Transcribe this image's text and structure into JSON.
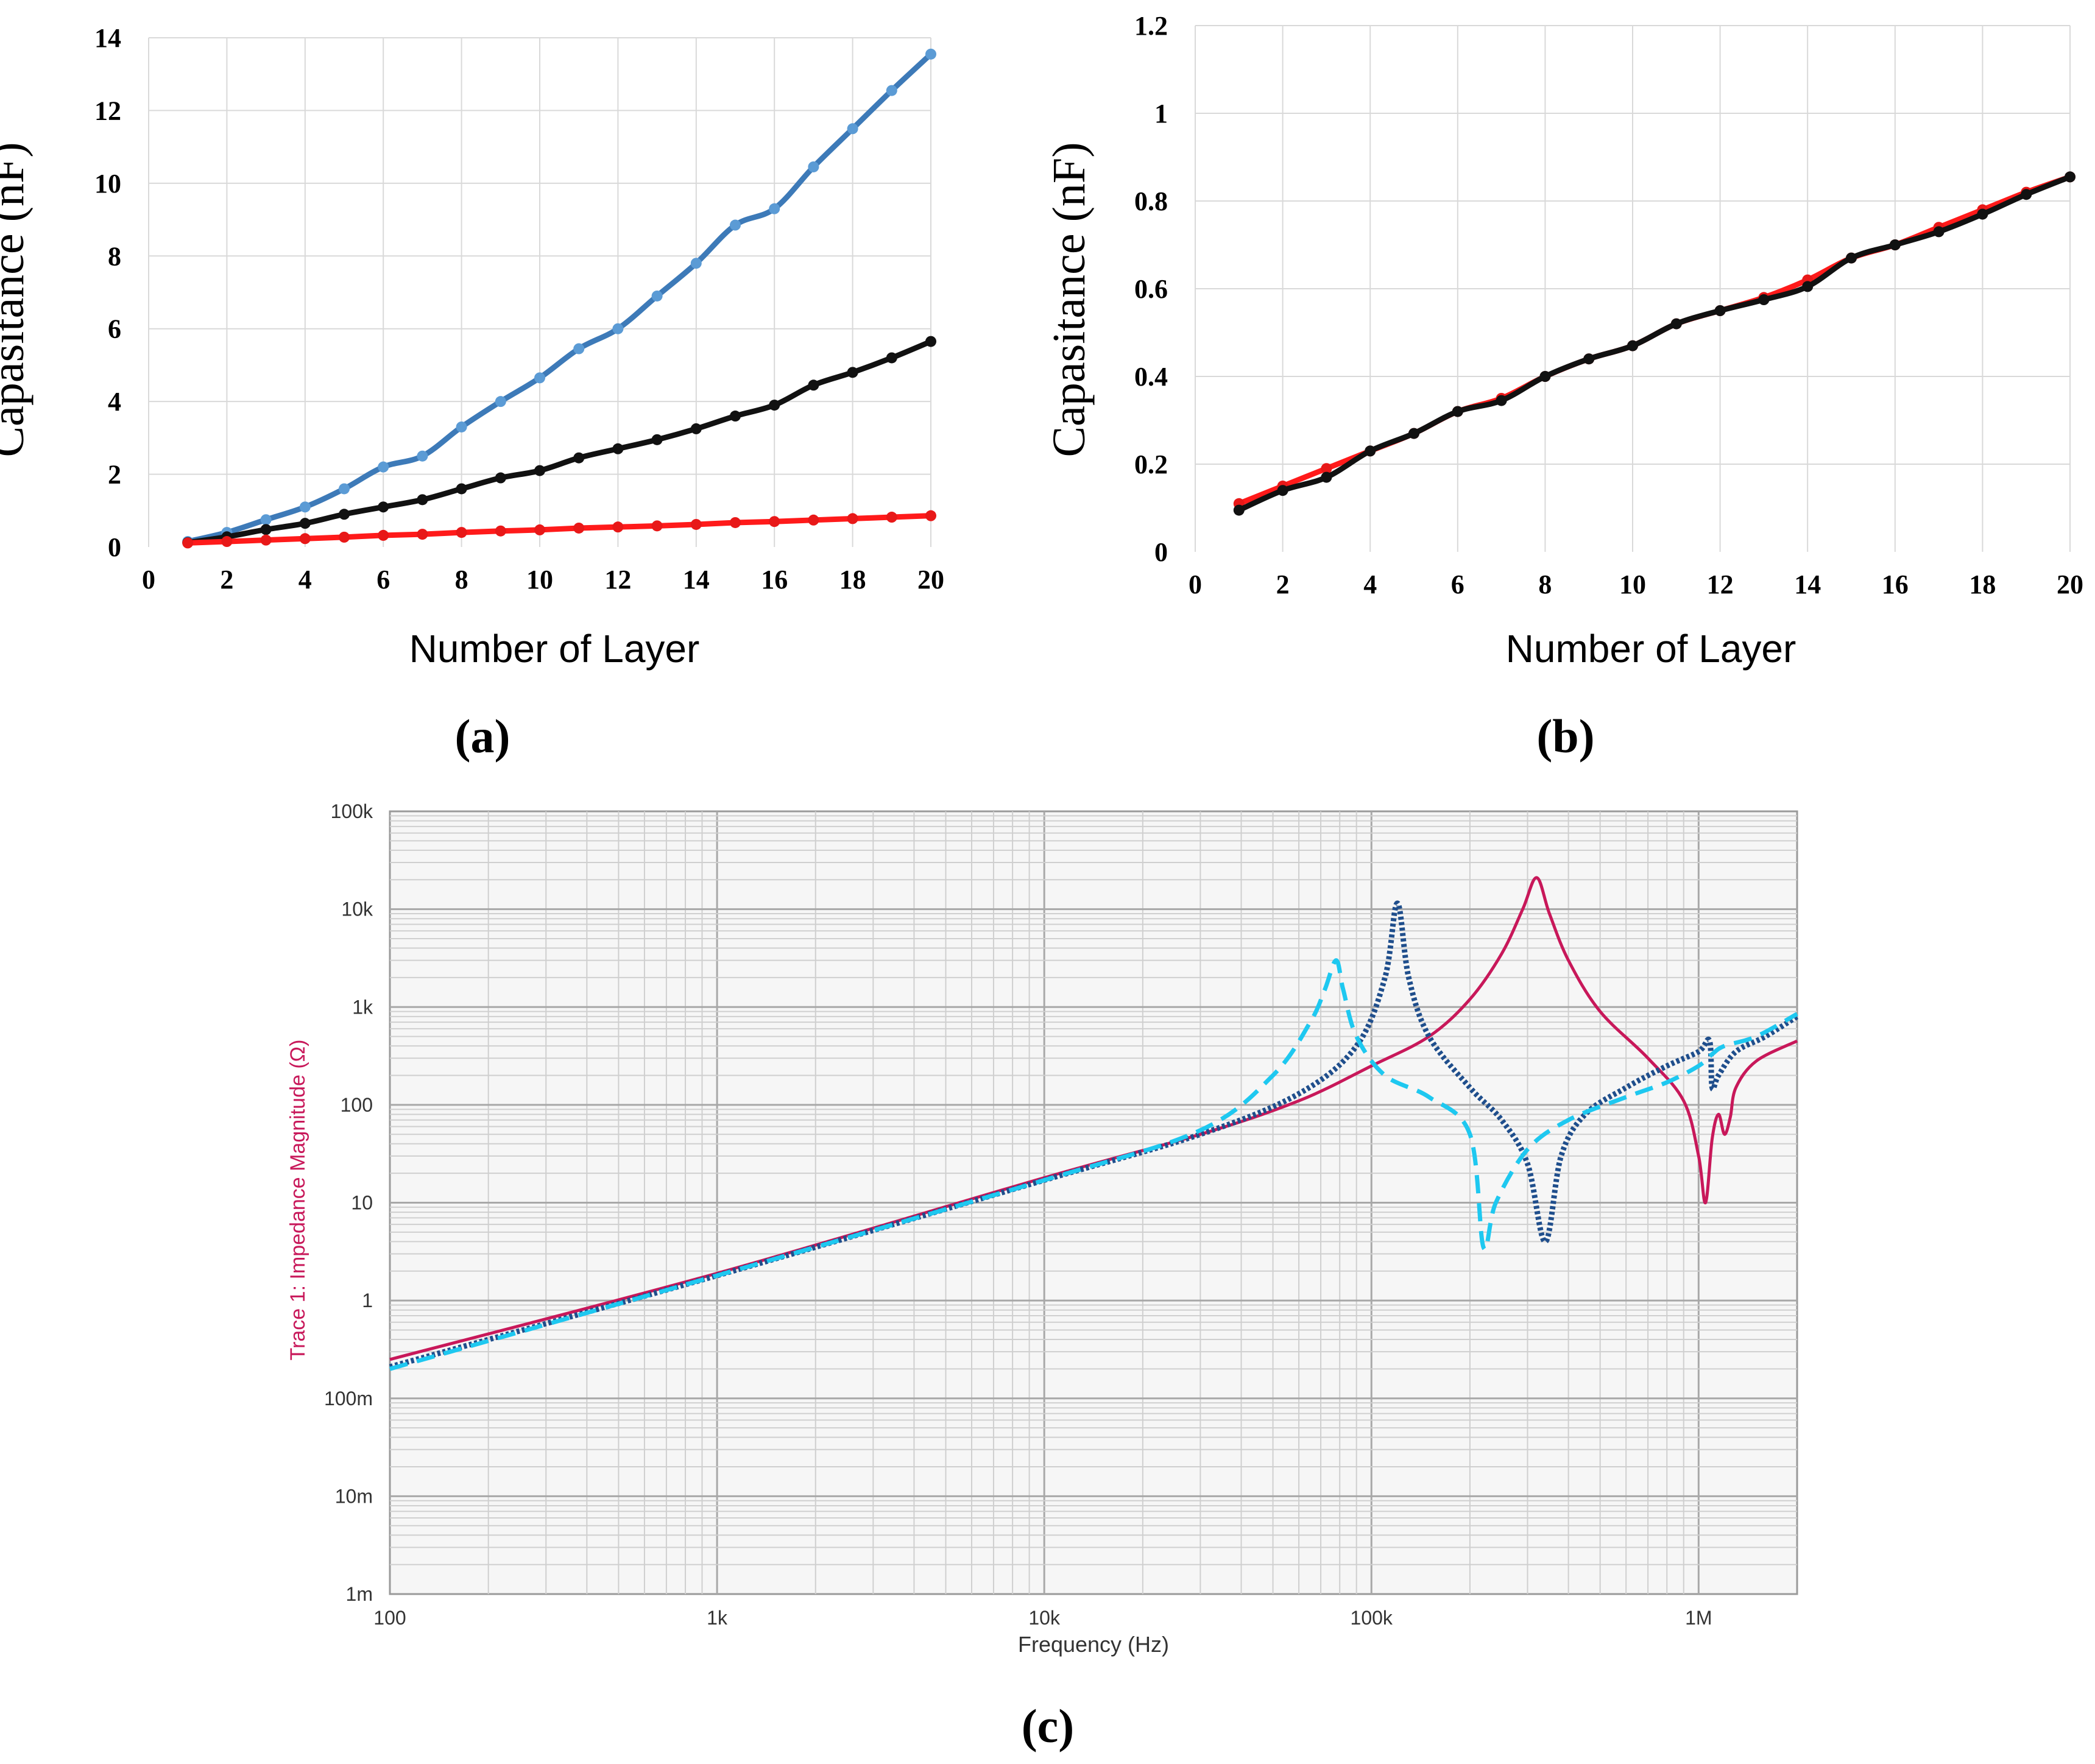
{
  "chart_data": [
    {
      "type": "line",
      "panel_label": "(a)",
      "xlabel": "Number of Layer",
      "ylabel": "Capasitance (nF)",
      "xlim": [
        0,
        20
      ],
      "ylim": [
        0,
        14
      ],
      "xticks": [
        "0",
        "2",
        "4",
        "6",
        "8",
        "10",
        "12",
        "14",
        "16",
        "18",
        "20"
      ],
      "yticks": [
        "0",
        "2",
        "4",
        "6",
        "8",
        "10",
        "12",
        "14"
      ],
      "grid": true,
      "x": [
        1,
        2,
        3,
        4,
        5,
        6,
        7,
        8,
        9,
        10,
        11,
        12,
        13,
        14,
        15,
        16,
        17,
        18,
        19,
        20
      ],
      "series": [
        {
          "name": "blue",
          "color": "#3d7ab8",
          "marker_color": "#5b9bd5",
          "values": [
            0.15,
            0.4,
            0.75,
            1.1,
            1.6,
            2.2,
            2.5,
            3.3,
            4.0,
            4.65,
            5.45,
            6.0,
            6.9,
            7.8,
            8.85,
            9.3,
            10.45,
            11.5,
            12.55,
            13.55
          ]
        },
        {
          "name": "black",
          "color": "#111111",
          "marker_color": "#111111",
          "values": [
            0.12,
            0.28,
            0.48,
            0.65,
            0.9,
            1.1,
            1.3,
            1.6,
            1.9,
            2.1,
            2.45,
            2.7,
            2.95,
            3.25,
            3.6,
            3.9,
            4.45,
            4.8,
            5.2,
            5.65
          ]
        },
        {
          "name": "red",
          "color": "#ff1a1a",
          "marker_color": "#e81818",
          "values": [
            0.11,
            0.15,
            0.19,
            0.23,
            0.27,
            0.32,
            0.35,
            0.4,
            0.44,
            0.47,
            0.52,
            0.55,
            0.58,
            0.62,
            0.67,
            0.7,
            0.74,
            0.78,
            0.82,
            0.86
          ]
        }
      ]
    },
    {
      "type": "line",
      "panel_label": "(b)",
      "xlabel": "Number of Layer",
      "ylabel": "Capasitance (nF)",
      "xlim": [
        0,
        20
      ],
      "ylim": [
        0,
        1.2
      ],
      "xticks": [
        "0",
        "2",
        "4",
        "6",
        "8",
        "10",
        "12",
        "14",
        "16",
        "18",
        "20"
      ],
      "yticks": [
        "0",
        "0.2",
        "0.4",
        "0.6",
        "0.8",
        "1",
        "1.2"
      ],
      "grid": true,
      "x": [
        1,
        2,
        3,
        4,
        5,
        6,
        7,
        8,
        9,
        10,
        11,
        12,
        13,
        14,
        15,
        16,
        17,
        18,
        19,
        20
      ],
      "series": [
        {
          "name": "red",
          "color": "#ff1a1a",
          "marker_color": "#e81818",
          "values": [
            0.11,
            0.15,
            0.19,
            0.23,
            0.27,
            0.32,
            0.35,
            0.4,
            0.44,
            0.47,
            0.52,
            0.55,
            0.58,
            0.62,
            0.67,
            0.7,
            0.74,
            0.78,
            0.82,
            0.855
          ]
        },
        {
          "name": "black",
          "color": "#111111",
          "marker_color": "#111111",
          "values": [
            0.095,
            0.14,
            0.17,
            0.23,
            0.27,
            0.32,
            0.345,
            0.4,
            0.44,
            0.47,
            0.52,
            0.55,
            0.575,
            0.605,
            0.67,
            0.7,
            0.73,
            0.77,
            0.815,
            0.855
          ]
        }
      ]
    },
    {
      "type": "line",
      "panel_label": "(c)",
      "xscale": "log",
      "yscale": "log",
      "xlabel": "Frequency (Hz)",
      "ylabel": "Trace 1: Impedance Magnitude (Ω)",
      "xlim": [
        100,
        2000000
      ],
      "ylim": [
        0.001,
        100000
      ],
      "xticks": [
        {
          "v": 100,
          "label": "100"
        },
        {
          "v": 1000,
          "label": "1k"
        },
        {
          "v": 10000,
          "label": "10k"
        },
        {
          "v": 100000,
          "label": "100k"
        },
        {
          "v": 1000000,
          "label": "1M"
        }
      ],
      "yticks": [
        {
          "v": 100000,
          "label": "100k"
        },
        {
          "v": 10000,
          "label": "10k"
        },
        {
          "v": 1000,
          "label": "1k"
        },
        {
          "v": 100,
          "label": "100"
        },
        {
          "v": 10,
          "label": "10"
        },
        {
          "v": 1,
          "label": "1"
        },
        {
          "v": 0.1,
          "label": "100m"
        },
        {
          "v": 0.01,
          "label": "10m"
        },
        {
          "v": 0.001,
          "label": "1m"
        }
      ],
      "grid": true,
      "series": [
        {
          "name": "magenta solid",
          "color": "#c8185a",
          "style": "solid",
          "x": [
            100,
            1000,
            10000,
            30000,
            60000,
            100000,
            150000,
            200000,
            250000,
            290000,
            320000,
            350000,
            400000,
            500000,
            700000,
            900000,
            1000000,
            1050000,
            1100000,
            1150000,
            1200000,
            1250000,
            1300000,
            1500000,
            2000000
          ],
          "y": [
            0.25,
            1.9,
            18,
            50,
            110,
            250,
            500,
            1200,
            3500,
            10000,
            21000,
            9000,
            3000,
            900,
            300,
            110,
            30,
            10,
            45,
            80,
            50,
            75,
            150,
            280,
            450
          ]
        },
        {
          "name": "navy dotted",
          "color": "#1f4e8c",
          "style": "dotted",
          "x": [
            100,
            1000,
            10000,
            30000,
            60000,
            90000,
            110000,
            120000,
            130000,
            150000,
            200000,
            250000,
            300000,
            340000,
            380000,
            450000,
            600000,
            800000,
            1000000,
            1080000,
            1100000,
            1150000,
            1300000,
            1600000,
            2000000
          ],
          "y": [
            0.21,
            1.8,
            17,
            50,
            130,
            400,
            2000,
            11500,
            2000,
            500,
            150,
            70,
            25,
            4,
            30,
            80,
            150,
            250,
            350,
            450,
            150,
            200,
            350,
            500,
            800
          ]
        },
        {
          "name": "cyan dashed",
          "color": "#1ec8f0",
          "style": "dashed",
          "x": [
            100,
            1000,
            10000,
            30000,
            50000,
            65000,
            72000,
            78000,
            82000,
            90000,
            110000,
            150000,
            200000,
            220000,
            240000,
            300000,
            400000,
            600000,
            800000,
            1000000,
            1100000,
            1200000,
            1500000,
            2000000
          ],
          "y": [
            0.2,
            1.8,
            17,
            55,
            200,
            700,
            1500,
            3000,
            1500,
            500,
            200,
            120,
            50,
            3.5,
            10,
            35,
            70,
            120,
            170,
            250,
            330,
            400,
            500,
            850
          ]
        }
      ]
    }
  ]
}
